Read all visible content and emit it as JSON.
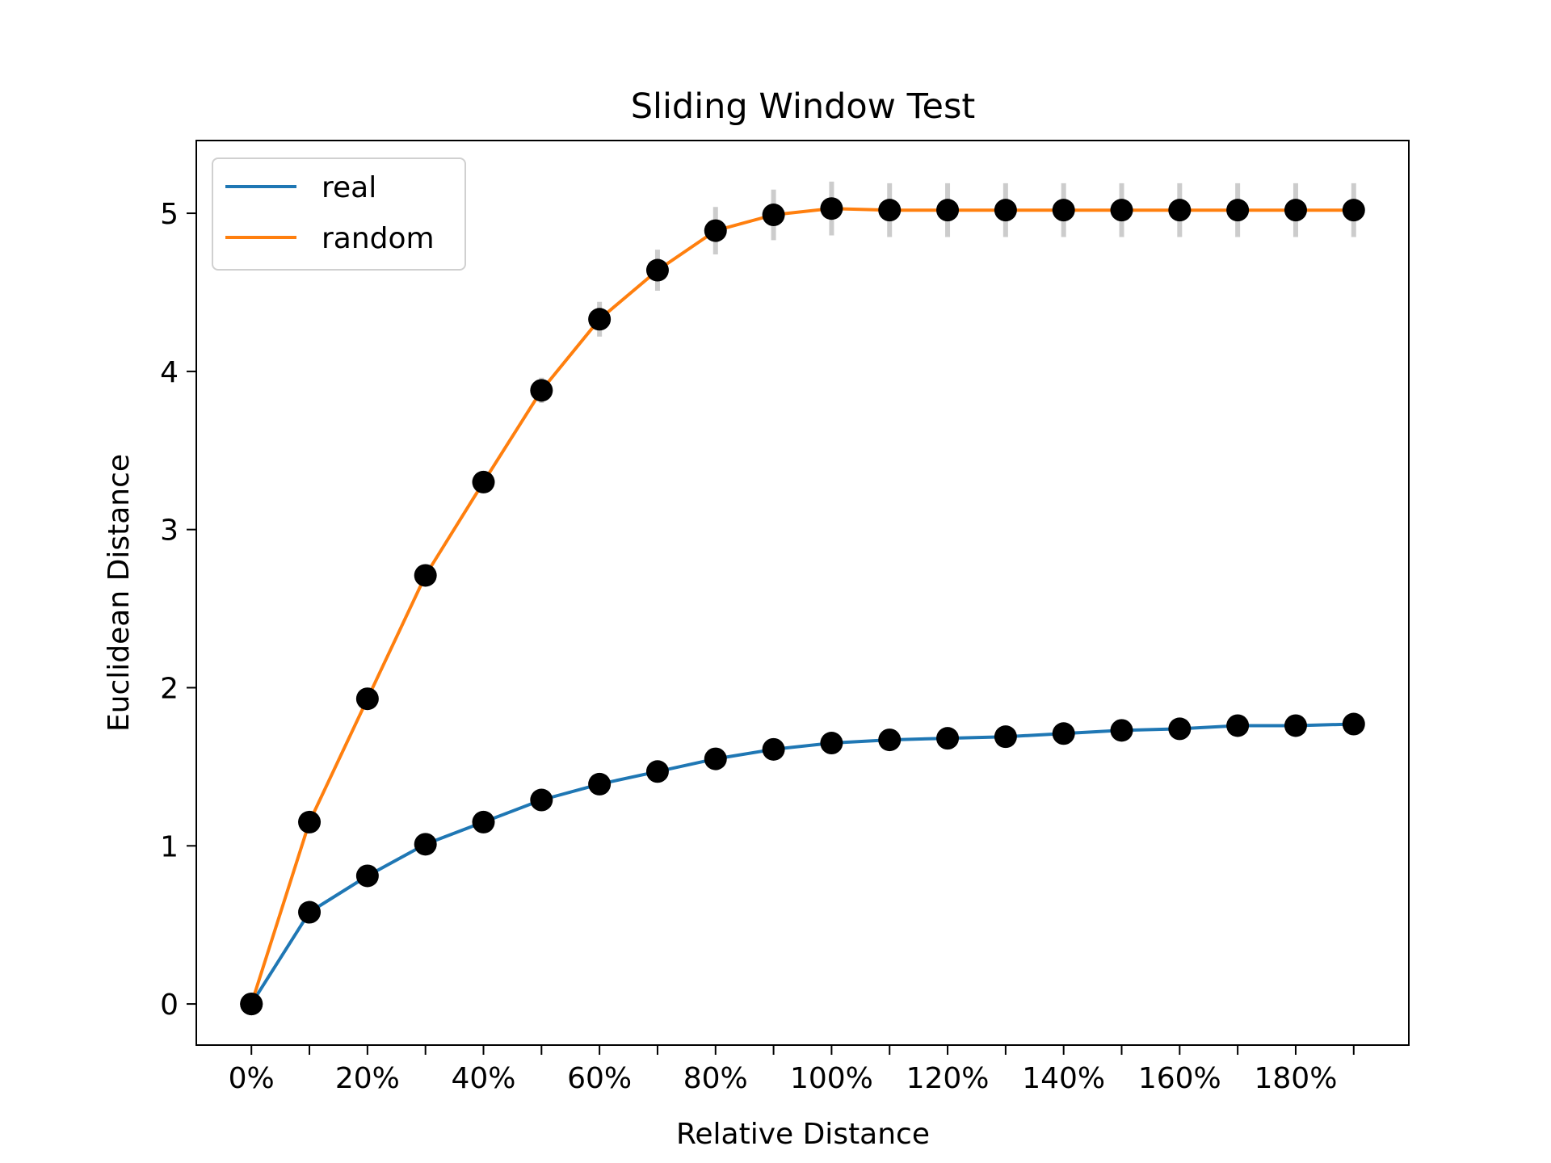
{
  "chart_data": {
    "type": "line",
    "title": "Sliding Window Test",
    "xlabel": "Relative Distance",
    "ylabel": "Euclidean Distance",
    "x": [
      0,
      10,
      20,
      30,
      40,
      50,
      60,
      70,
      80,
      90,
      100,
      110,
      120,
      130,
      140,
      150,
      160,
      170,
      180,
      190
    ],
    "xlim": [
      -9.5,
      199.5
    ],
    "ylim": [
      -0.26,
      5.46
    ],
    "x_ticks": [
      0,
      10,
      20,
      30,
      40,
      50,
      60,
      70,
      80,
      90,
      100,
      110,
      120,
      130,
      140,
      150,
      160,
      170,
      180,
      190
    ],
    "x_tick_labels": [
      {
        "value": 0,
        "label": "0%"
      },
      {
        "value": 20,
        "label": "20%"
      },
      {
        "value": 40,
        "label": "40%"
      },
      {
        "value": 60,
        "label": "60%"
      },
      {
        "value": 80,
        "label": "80%"
      },
      {
        "value": 100,
        "label": "100%"
      },
      {
        "value": 120,
        "label": "120%"
      },
      {
        "value": 140,
        "label": "140%"
      },
      {
        "value": 160,
        "label": "160%"
      },
      {
        "value": 180,
        "label": "180%"
      }
    ],
    "y_ticks": [
      {
        "value": 0,
        "label": "0"
      },
      {
        "value": 1,
        "label": "1"
      },
      {
        "value": 2,
        "label": "2"
      },
      {
        "value": 3,
        "label": "3"
      },
      {
        "value": 4,
        "label": "4"
      },
      {
        "value": 5,
        "label": "5"
      }
    ],
    "grid": false,
    "legend_position": "top-left",
    "marker_color": "#000000",
    "errorbar_color": "#cccccc",
    "series": [
      {
        "name": "real",
        "color": "#1f77b4",
        "values": [
          0.0,
          0.58,
          0.81,
          1.01,
          1.15,
          1.29,
          1.39,
          1.47,
          1.55,
          1.61,
          1.65,
          1.67,
          1.68,
          1.69,
          1.71,
          1.73,
          1.74,
          1.76,
          1.76,
          1.77
        ],
        "errors": []
      },
      {
        "name": "random",
        "color": "#ff7f0e",
        "values": [
          0.0,
          1.15,
          1.93,
          2.71,
          3.3,
          3.88,
          4.33,
          4.64,
          4.89,
          4.99,
          5.03,
          5.02,
          5.02,
          5.02,
          5.02,
          5.02,
          5.02,
          5.02,
          5.02,
          5.02
        ],
        "errors": [
          0,
          0,
          0,
          0.02,
          0.05,
          0.08,
          0.11,
          0.13,
          0.15,
          0.16,
          0.17,
          0.17,
          0.17,
          0.17,
          0.17,
          0.17,
          0.17,
          0.17,
          0.17,
          0.17
        ]
      }
    ]
  }
}
